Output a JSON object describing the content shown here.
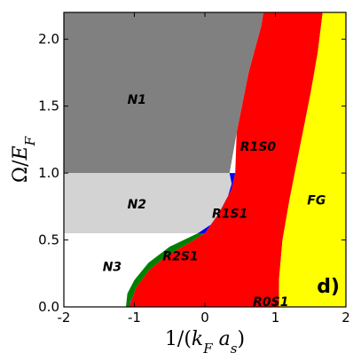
{
  "chart_data": {
    "type": "area",
    "title": "",
    "panel_label": "d)",
    "xlabel": "1/(k_F a_s)",
    "ylabel": "Ω/E_F",
    "xlim": [
      -2,
      2
    ],
    "ylim": [
      0,
      2.2
    ],
    "x_ticks": [
      -2,
      -1,
      0,
      1,
      2
    ],
    "x_tick_labels": [
      "-2",
      "-1",
      "0",
      "1",
      "2"
    ],
    "y_ticks": [
      0.0,
      0.5,
      1.0,
      1.5,
      2.0
    ],
    "y_tick_labels": [
      "0.0",
      "0.5",
      "1.0",
      "1.5",
      "2.0"
    ],
    "grid": false,
    "regions": [
      {
        "name": "N1",
        "label": "N1",
        "color": "#808080",
        "polygon": [
          [
            -2,
            1.0
          ],
          [
            0.35,
            1.0
          ],
          [
            0.45,
            1.3
          ],
          [
            0.62,
            1.75
          ],
          [
            0.8,
            2.1
          ],
          [
            0.83,
            2.2
          ],
          [
            -2,
            2.2
          ]
        ],
        "label_at": [
          -1.1,
          1.55
        ]
      },
      {
        "name": "N2",
        "label": "N2",
        "color": "#d3d3d3",
        "polygon": [
          [
            -2,
            0.55
          ],
          [
            -0.1,
            0.55
          ],
          [
            0.1,
            0.62
          ],
          [
            0.3,
            0.78
          ],
          [
            0.38,
            0.92
          ],
          [
            0.35,
            1.0
          ],
          [
            -2,
            1.0
          ]
        ],
        "label_at": [
          -1.1,
          0.77
        ]
      },
      {
        "name": "N3",
        "label": "N3",
        "color": "#ffffff",
        "polygon": [
          [
            -2,
            0.0
          ],
          [
            -1.12,
            0.0
          ],
          [
            -1.1,
            0.1
          ],
          [
            -1.0,
            0.2
          ],
          [
            -0.8,
            0.33
          ],
          [
            -0.5,
            0.45
          ],
          [
            -0.1,
            0.55
          ],
          [
            -2,
            0.55
          ]
        ],
        "label_at": [
          -1.45,
          0.3
        ]
      },
      {
        "name": "R2S1",
        "label": "R2S1",
        "color": "#008000",
        "polygon": [
          [
            -1.12,
            0.0
          ],
          [
            -1.07,
            0.0
          ],
          [
            -0.98,
            0.14
          ],
          [
            -0.8,
            0.27
          ],
          [
            -0.55,
            0.38
          ],
          [
            -0.25,
            0.47
          ],
          [
            0.0,
            0.55
          ],
          [
            -0.1,
            0.55
          ],
          [
            -0.5,
            0.45
          ],
          [
            -0.8,
            0.33
          ],
          [
            -1.0,
            0.2
          ],
          [
            -1.1,
            0.1
          ]
        ],
        "label_at": [
          -0.6,
          0.38
        ]
      },
      {
        "name": "R1S1",
        "label": "R1S1",
        "color": "#0000ff",
        "polygon": [
          [
            -0.1,
            0.55
          ],
          [
            0.0,
            0.55
          ],
          [
            0.2,
            0.7
          ],
          [
            0.38,
            0.88
          ],
          [
            0.43,
            1.0
          ],
          [
            0.35,
            1.0
          ],
          [
            0.38,
            0.92
          ],
          [
            0.3,
            0.78
          ],
          [
            0.1,
            0.62
          ]
        ],
        "label_at": [
          0.1,
          0.7
        ]
      },
      {
        "name": "R0S1",
        "label": "R0S1",
        "color": "#ff00ff",
        "polygon": [
          [
            -1.07,
            0.0
          ],
          [
            1.05,
            0.0
          ],
          [
            1.05,
            0.05
          ],
          [
            -1.05,
            0.05
          ]
        ],
        "label_at": [
          0.68,
          0.04
        ]
      },
      {
        "name": "R1S0",
        "label": "R1S0",
        "color": "#ff0000",
        "polygon": [
          [
            -1.07,
            0.0
          ],
          [
            1.05,
            0.0
          ],
          [
            1.05,
            0.2
          ],
          [
            1.1,
            0.5
          ],
          [
            1.2,
            0.8
          ],
          [
            1.35,
            1.2
          ],
          [
            1.5,
            1.6
          ],
          [
            1.6,
            1.9
          ],
          [
            1.67,
            2.2
          ],
          [
            0.83,
            2.2
          ],
          [
            0.8,
            2.1
          ],
          [
            0.62,
            1.75
          ],
          [
            0.45,
            1.3
          ],
          [
            0.43,
            1.0
          ],
          [
            0.38,
            0.88
          ],
          [
            0.2,
            0.7
          ],
          [
            0.0,
            0.55
          ],
          [
            -0.25,
            0.47
          ],
          [
            -0.55,
            0.38
          ],
          [
            -0.8,
            0.27
          ],
          [
            -0.98,
            0.14
          ]
        ],
        "label_at": [
          0.5,
          1.2
        ]
      },
      {
        "name": "FG",
        "label": "FG",
        "color": "#ffff00",
        "polygon": [
          [
            1.05,
            0.0
          ],
          [
            2,
            0.0
          ],
          [
            2,
            2.2
          ],
          [
            1.67,
            2.2
          ],
          [
            1.6,
            1.9
          ],
          [
            1.5,
            1.6
          ],
          [
            1.35,
            1.2
          ],
          [
            1.2,
            0.8
          ],
          [
            1.1,
            0.5
          ],
          [
            1.05,
            0.2
          ]
        ],
        "label_at": [
          1.45,
          0.8
        ]
      }
    ]
  }
}
